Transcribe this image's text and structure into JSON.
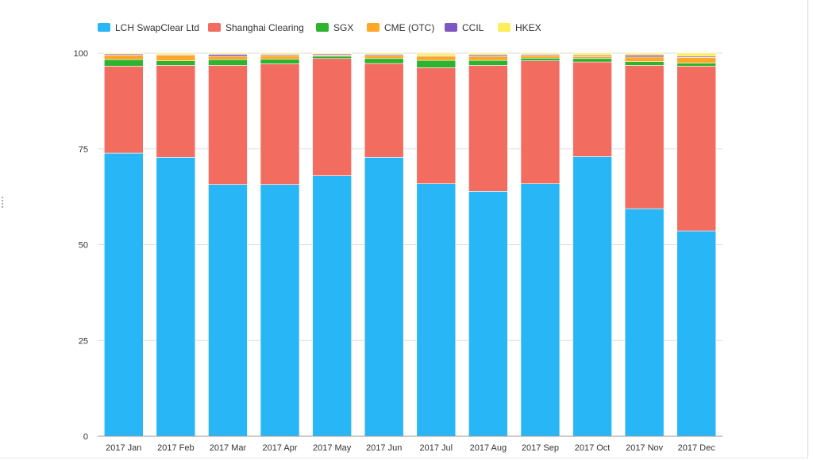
{
  "chart_data": {
    "type": "bar",
    "stacked": true,
    "title": "",
    "xlabel": "",
    "ylabel": "",
    "ylim": [
      0,
      100
    ],
    "yticks": [
      0,
      25,
      50,
      75,
      100
    ],
    "grid": true,
    "legend_position": "top-left",
    "categories": [
      "2017 Jan",
      "2017 Feb",
      "2017 Mar",
      "2017 Apr",
      "2017 May",
      "2017 Jun",
      "2017 Jul",
      "2017 Aug",
      "2017 Sep",
      "2017 Oct",
      "2017 Nov",
      "2017 Dec"
    ],
    "series": [
      {
        "name": "LCH SwapClear Ltd",
        "color": "#29b6f6",
        "values": [
          73.9,
          72.8,
          65.7,
          65.7,
          68.0,
          72.8,
          65.9,
          63.9,
          65.9,
          73.0,
          59.4,
          53.6
        ]
      },
      {
        "name": "Shanghai Clearing",
        "color": "#f26c60",
        "values": [
          22.7,
          24.0,
          31.1,
          31.5,
          30.6,
          24.5,
          30.3,
          32.9,
          32.1,
          24.7,
          37.4,
          43.0
        ]
      },
      {
        "name": "SGX",
        "color": "#2db32d",
        "values": [
          1.7,
          1.2,
          1.5,
          1.2,
          0.6,
          1.3,
          1.9,
          1.3,
          0.7,
          0.9,
          1.0,
          0.8
        ]
      },
      {
        "name": "CME (OTC)",
        "color": "#ffa726",
        "values": [
          1.2,
          1.5,
          0.9,
          0.9,
          0.3,
          0.8,
          1.1,
          1.0,
          0.6,
          0.5,
          1.2,
          1.5
        ]
      },
      {
        "name": "CCIL",
        "color": "#7e57c2",
        "values": [
          0.3,
          0.2,
          0.5,
          0.3,
          0.3,
          0.3,
          0.2,
          0.4,
          0.3,
          0.3,
          0.5,
          0.3
        ]
      },
      {
        "name": "HKEX",
        "color": "#ffee58",
        "values": [
          0.2,
          0.3,
          0.3,
          0.4,
          0.2,
          0.3,
          0.6,
          0.5,
          0.4,
          0.6,
          0.5,
          0.8
        ]
      }
    ]
  }
}
